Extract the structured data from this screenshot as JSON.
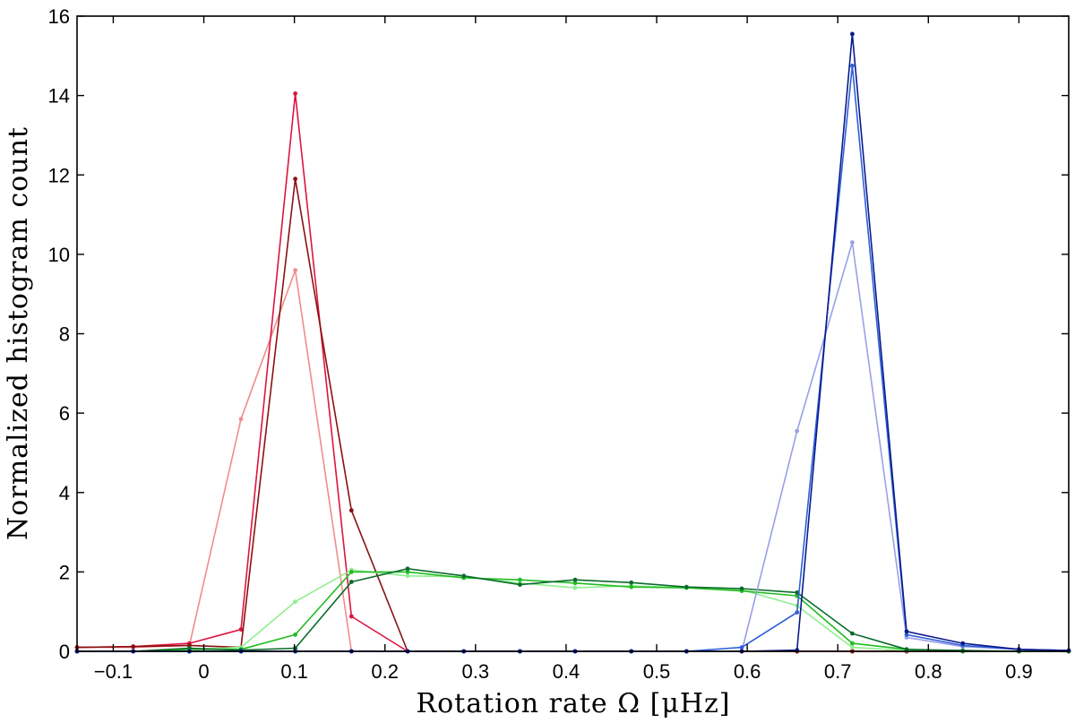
{
  "chart_data": {
    "type": "line",
    "title": "",
    "xlabel": "Rotation rate Ω [μHz]",
    "ylabel": "Normalized histogram count",
    "xlim": [
      -0.14,
      0.955
    ],
    "ylim": [
      0,
      16
    ],
    "xticks": [
      -0.1,
      0,
      0.1,
      0.2,
      0.3,
      0.4,
      0.5,
      0.6,
      0.7,
      0.8,
      0.9
    ],
    "xtick_labels": [
      "−0.1",
      "0",
      "0.1",
      "0.2",
      "0.3",
      "0.4",
      "0.5",
      "0.6",
      "0.7",
      "0.8",
      "0.9"
    ],
    "yticks": [
      0,
      2,
      4,
      6,
      8,
      10,
      12,
      14,
      16
    ],
    "ytick_labels": [
      "0",
      "2",
      "4",
      "6",
      "8",
      "10",
      "12",
      "14",
      "16"
    ],
    "grid": false,
    "legend": "none",
    "series": [
      {
        "color": "#f08c8c",
        "x": [
          -0.14,
          -0.078,
          -0.016,
          0.041,
          0.101,
          0.163,
          0.225,
          0.287,
          0.349,
          0.41,
          0.472,
          0.533,
          0.594,
          0.655,
          0.716,
          0.776,
          0.838,
          0.9,
          0.955
        ],
        "y": [
          0.1,
          0.1,
          0.15,
          5.85,
          9.6,
          0.0,
          0.0,
          0.0,
          0.0,
          0.0,
          0.0,
          0.0,
          0.0,
          0.0,
          0.0,
          0.0,
          0.0,
          0.0,
          0.0
        ]
      },
      {
        "color": "#dc1440",
        "x": [
          -0.14,
          -0.078,
          -0.016,
          0.041,
          0.101,
          0.163,
          0.225,
          0.287,
          0.349,
          0.41,
          0.472,
          0.533,
          0.594,
          0.655,
          0.716,
          0.776,
          0.838,
          0.9,
          0.955
        ],
        "y": [
          0.1,
          0.12,
          0.2,
          0.55,
          14.05,
          0.88,
          0.0,
          0.0,
          0.0,
          0.0,
          0.0,
          0.0,
          0.0,
          0.0,
          0.0,
          0.0,
          0.0,
          0.0,
          0.0
        ]
      },
      {
        "color": "#8b1010",
        "x": [
          -0.14,
          -0.078,
          -0.016,
          0.041,
          0.101,
          0.163,
          0.225,
          0.287,
          0.349,
          0.41,
          0.472,
          0.533,
          0.594,
          0.655,
          0.716,
          0.776,
          0.838,
          0.9,
          0.955
        ],
        "y": [
          0.1,
          0.12,
          0.15,
          0.1,
          11.9,
          3.55,
          0.0,
          0.0,
          0.0,
          0.0,
          0.0,
          0.0,
          0.0,
          0.0,
          0.0,
          0.0,
          0.0,
          0.0,
          0.0
        ]
      },
      {
        "color": "#90ee90",
        "x": [
          -0.14,
          -0.078,
          -0.016,
          0.041,
          0.101,
          0.163,
          0.225,
          0.287,
          0.349,
          0.41,
          0.472,
          0.533,
          0.594,
          0.655,
          0.716,
          0.776,
          0.838,
          0.9,
          0.955
        ],
        "y": [
          0.0,
          0.0,
          0.05,
          0.1,
          1.25,
          2.05,
          1.9,
          1.88,
          1.72,
          1.6,
          1.65,
          1.6,
          1.55,
          1.15,
          0.1,
          0.02,
          0.0,
          0.0,
          0.0
        ]
      },
      {
        "color": "#22bb22",
        "x": [
          -0.14,
          -0.078,
          -0.016,
          0.041,
          0.101,
          0.163,
          0.225,
          0.287,
          0.349,
          0.41,
          0.472,
          0.533,
          0.594,
          0.655,
          0.716,
          0.776,
          0.838,
          0.9,
          0.955
        ],
        "y": [
          0.0,
          0.0,
          0.05,
          0.05,
          0.42,
          2.0,
          2.0,
          1.85,
          1.8,
          1.72,
          1.62,
          1.6,
          1.52,
          1.4,
          0.2,
          0.05,
          0.0,
          0.0,
          0.0
        ]
      },
      {
        "color": "#0b6b2b",
        "x": [
          -0.14,
          -0.078,
          -0.016,
          0.041,
          0.101,
          0.163,
          0.225,
          0.287,
          0.349,
          0.41,
          0.472,
          0.533,
          0.594,
          0.655,
          0.716,
          0.776,
          0.838,
          0.9,
          0.955
        ],
        "y": [
          0.0,
          0.0,
          0.08,
          0.03,
          0.08,
          1.75,
          2.08,
          1.9,
          1.68,
          1.8,
          1.73,
          1.62,
          1.58,
          1.48,
          0.45,
          0.05,
          0.02,
          0.0,
          0.0
        ]
      },
      {
        "color": "#9aa0e6",
        "x": [
          -0.14,
          -0.078,
          -0.016,
          0.041,
          0.101,
          0.163,
          0.225,
          0.287,
          0.349,
          0.41,
          0.472,
          0.533,
          0.594,
          0.655,
          0.716,
          0.776,
          0.838,
          0.9,
          0.955
        ],
        "y": [
          0.0,
          0.0,
          0.0,
          0.0,
          0.0,
          0.0,
          0.0,
          0.0,
          0.0,
          0.0,
          0.0,
          0.0,
          0.0,
          5.55,
          10.3,
          0.35,
          0.12,
          0.05,
          0.02
        ]
      },
      {
        "color": "#2f5fd8",
        "x": [
          -0.14,
          -0.078,
          -0.016,
          0.041,
          0.101,
          0.163,
          0.225,
          0.287,
          0.349,
          0.41,
          0.472,
          0.533,
          0.594,
          0.655,
          0.716,
          0.776,
          0.838,
          0.9,
          0.955
        ],
        "y": [
          0.0,
          0.0,
          0.0,
          0.0,
          0.0,
          0.0,
          0.0,
          0.0,
          0.0,
          0.0,
          0.0,
          0.0,
          0.1,
          0.98,
          14.75,
          0.42,
          0.15,
          0.05,
          0.02
        ]
      },
      {
        "color": "#0a1a8c",
        "x": [
          -0.14,
          -0.078,
          -0.016,
          0.041,
          0.101,
          0.163,
          0.225,
          0.287,
          0.349,
          0.41,
          0.472,
          0.533,
          0.594,
          0.655,
          0.716,
          0.776,
          0.838,
          0.9,
          0.955
        ],
        "y": [
          0.0,
          0.0,
          0.0,
          0.0,
          0.0,
          0.0,
          0.0,
          0.0,
          0.0,
          0.0,
          0.0,
          0.0,
          0.0,
          0.03,
          15.55,
          0.5,
          0.2,
          0.05,
          0.02
        ]
      }
    ]
  }
}
